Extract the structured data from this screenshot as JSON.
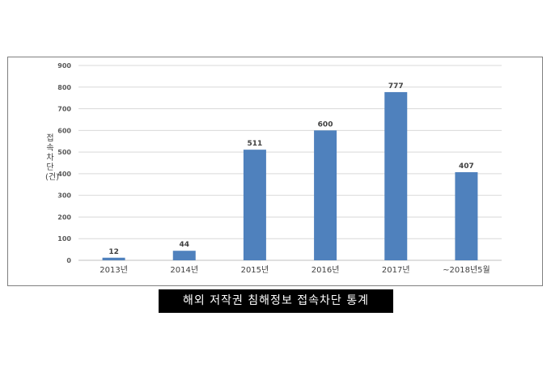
{
  "chart_data": {
    "type": "bar",
    "categories": [
      "2013년",
      "2014년",
      "2015년",
      "2016년",
      "2017년",
      "~2018년5월"
    ],
    "values": [
      12,
      44,
      511,
      600,
      777,
      407
    ],
    "ylabel": "접속차단(건)",
    "ylim": [
      0,
      900
    ],
    "yticks": [
      0,
      100,
      200,
      300,
      400,
      500,
      600,
      700,
      800,
      900
    ],
    "grid": true,
    "bar_color": "#4f81bd"
  },
  "caption": "해외 저작권 침해정보 접속차단 통계"
}
